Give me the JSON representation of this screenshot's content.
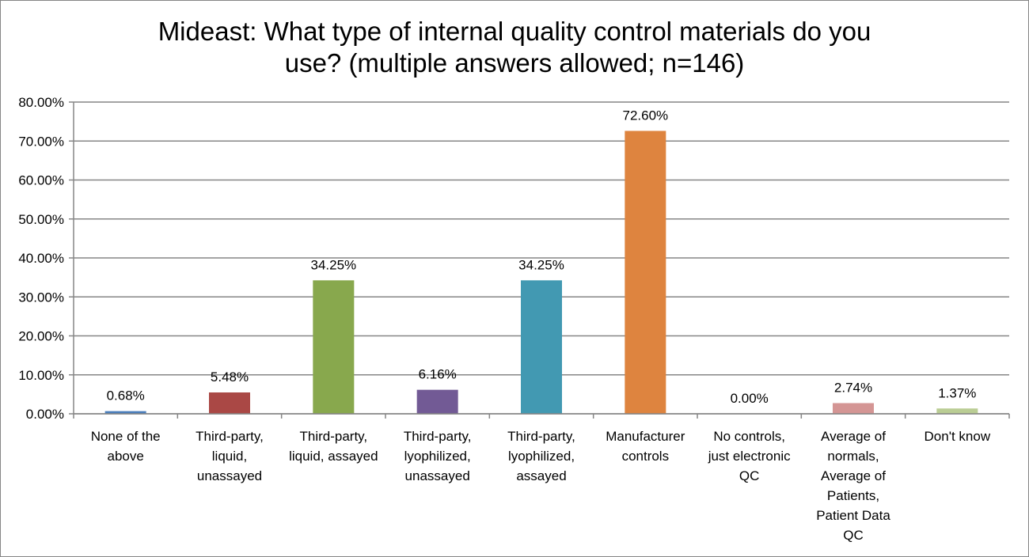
{
  "chart_data": {
    "type": "bar",
    "title": "Mideast: What type of internal quality control materials do you use? (multiple answers allowed; n=146)",
    "title_lines": [
      "Mideast: What type of internal quality control materials do you",
      "use? (multiple answers allowed; n=146)"
    ],
    "categories": [
      [
        "None of the",
        "above"
      ],
      [
        "Third-party,",
        "liquid,",
        "unassayed"
      ],
      [
        "Third-party,",
        "liquid, assayed"
      ],
      [
        "Third-party,",
        "lyophilized,",
        "unassayed"
      ],
      [
        "Third-party,",
        "lyophilized,",
        "assayed"
      ],
      [
        "Manufacturer",
        "controls"
      ],
      [
        "No controls,",
        "just electronic",
        "QC"
      ],
      [
        "Average of",
        "normals,",
        "Average of",
        "Patients,",
        "Patient Data",
        "QC"
      ],
      [
        "Don't know"
      ]
    ],
    "values": [
      0.68,
      5.48,
      34.25,
      6.16,
      34.25,
      72.6,
      0.0,
      2.74,
      1.37
    ],
    "data_labels": [
      "0.68%",
      "5.48%",
      "34.25%",
      "6.16%",
      "34.25%",
      "72.60%",
      "0.00%",
      "2.74%",
      "1.37%"
    ],
    "colors": [
      "#4A7EBB",
      "#AA4845",
      "#88A84D",
      "#725A95",
      "#4299B2",
      "#DE843F",
      "#4A7EBB",
      "#D49594",
      "#BACD94"
    ],
    "ylim": [
      0,
      80
    ],
    "yticks": [
      0,
      10,
      20,
      30,
      40,
      50,
      60,
      70,
      80
    ],
    "ytick_labels": [
      "0.00%",
      "10.00%",
      "20.00%",
      "30.00%",
      "40.00%",
      "50.00%",
      "60.00%",
      "70.00%",
      "80.00%"
    ],
    "grid": true,
    "legend": "none",
    "xlabel": "",
    "ylabel": ""
  }
}
